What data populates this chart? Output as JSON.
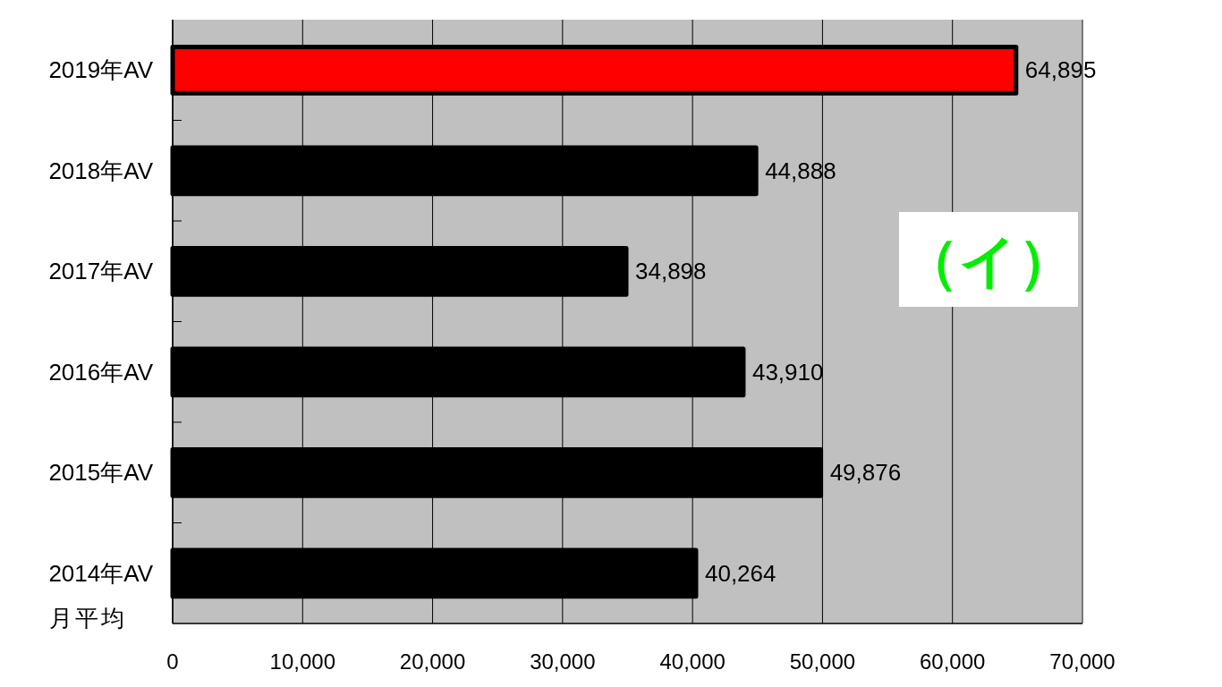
{
  "chart_data": {
    "type": "bar",
    "orientation": "horizontal",
    "categories": [
      "2019年AV",
      "2018年AV",
      "2017年AV",
      "2016年AV",
      "2015年AV",
      "2014年AV"
    ],
    "values": [
      64895,
      44888,
      34898,
      43910,
      49876,
      40264
    ],
    "colors": [
      "#ff0000",
      "#000000",
      "#000000",
      "#000000",
      "#000000",
      "#000000"
    ],
    "value_labels": [
      "64,895",
      "44,888",
      "34,898",
      "43,910",
      "49,876",
      "40,264"
    ],
    "xlim": [
      0,
      70000
    ],
    "xticks": [
      0,
      {
        "value": 10000,
        "label": "10,000"
      },
      {
        "value": 20000,
        "label": "20,000"
      },
      {
        "value": 30000,
        "label": "30,000"
      },
      {
        "value": 40000,
        "label": "40,000"
      },
      {
        "value": 50000,
        "label": "50,000"
      },
      {
        "value": 60000,
        "label": "60,000"
      },
      {
        "value": 70000,
        "label": "70,000"
      }
    ],
    "grid": "x",
    "ylabel": "月平均",
    "annotations": [
      "（イ）"
    ]
  }
}
